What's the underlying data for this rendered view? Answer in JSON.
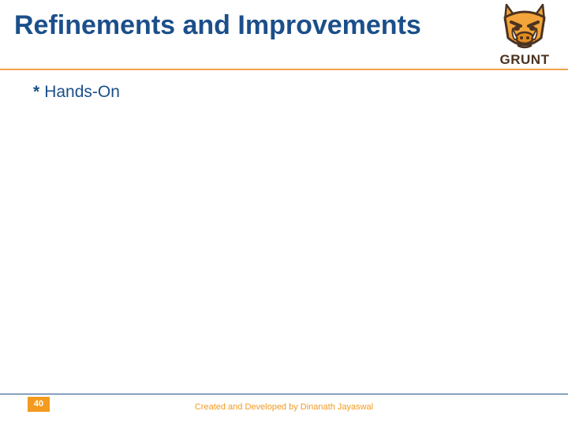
{
  "slide": {
    "title": "Refinements and Improvements",
    "bullets": [
      {
        "marker": "*",
        "text": "Hands-On"
      }
    ]
  },
  "logo": {
    "text": "GRUNT",
    "icon": "grunt-boar-icon",
    "colors": {
      "face": "#f3a43a",
      "outline": "#4a3320",
      "tusk": "#ffffff"
    }
  },
  "footer": {
    "page_number": "40",
    "credit": "Created and Developed by Dinanath Jayaswal"
  },
  "colors": {
    "title": "#1b4f8a",
    "accent": "#f39a1f",
    "header_rule": "#f0a24b",
    "footer_rule": "#1b4f8a"
  }
}
